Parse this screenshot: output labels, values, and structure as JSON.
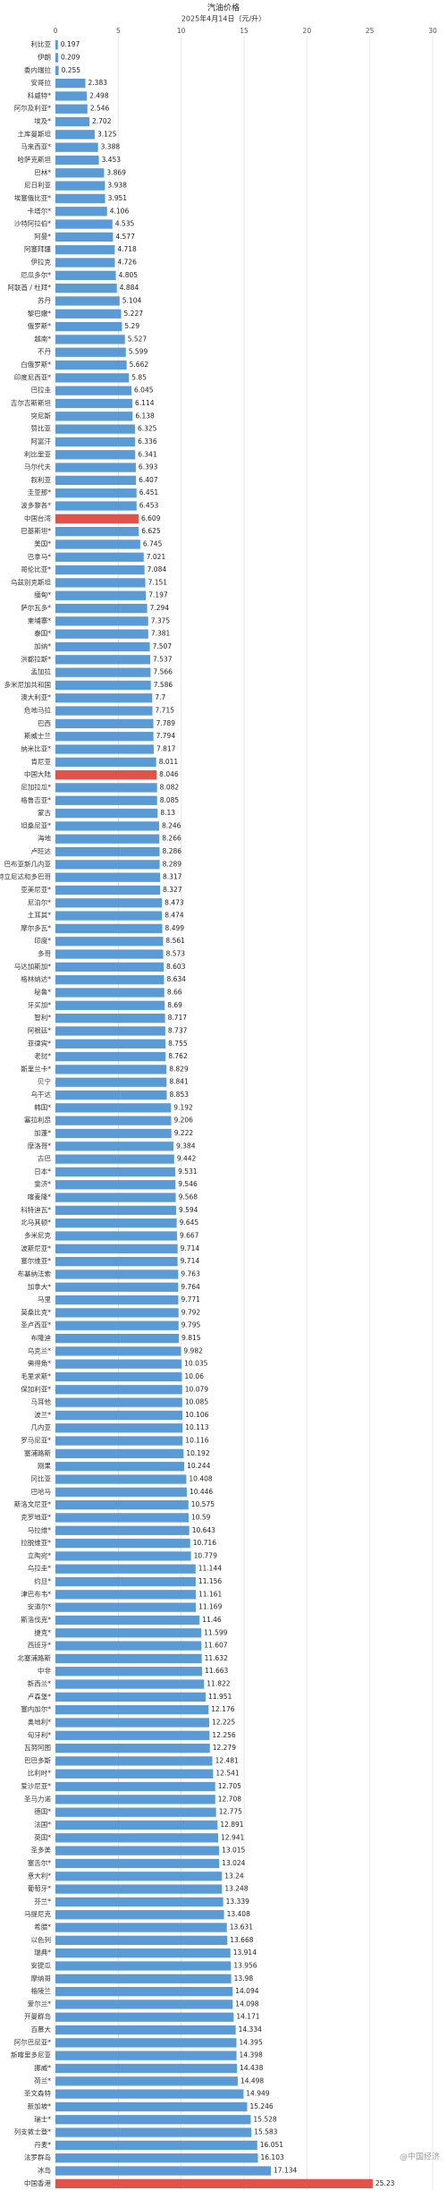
{
  "chart_data": {
    "type": "barh",
    "title": "汽油价格",
    "subtitle": "2025年4月14日（元/升）",
    "watermark": "@中国经济",
    "xlim": [
      0,
      30
    ],
    "xticks": [
      0,
      5,
      10,
      15,
      20,
      25,
      30
    ],
    "grid": true,
    "categories": [
      "利比亚",
      "伊朗",
      "委内瑞拉",
      "安哥拉",
      "科威特*",
      "阿尔及利亚*",
      "埃及*",
      "土库曼斯坦",
      "马来西亚*",
      "哈萨克斯坦",
      "巴林*",
      "尼日利亚",
      "埃塞俄比亚*",
      "卡塔尔*",
      "沙特阿拉伯*",
      "阿曼*",
      "阿塞拜疆",
      "伊拉克",
      "厄瓜多尔*",
      "阿联酋 / 杜拜*",
      "苏丹",
      "黎巴嫩*",
      "俄罗斯*",
      "越南*",
      "不丹",
      "白俄罗斯*",
      "印度尼西亚*",
      "巴拉圭",
      "吉尔吉斯斯坦",
      "突尼斯",
      "赞比亚",
      "阿富汗",
      "利比里亚",
      "马尔代夫",
      "叙利亚",
      "圭亚那*",
      "波多黎各*",
      "中国台湾",
      "巴基斯坦*",
      "美国*",
      "巴拿马*",
      "哥伦比亚*",
      "乌兹别克斯坦",
      "缅甸*",
      "萨尔瓦多*",
      "柬埔寨*",
      "泰国*",
      "加纳*",
      "洪都拉斯*",
      "孟加拉",
      "多米尼加共和国",
      "澳大利亚*",
      "危地马拉",
      "巴西",
      "斯威士兰",
      "纳米比亚*",
      "肯尼亚",
      "中国大陆",
      "尼加拉瓜*",
      "格鲁吉亚*",
      "蒙古",
      "坦桑尼亚*",
      "海地",
      "卢旺达",
      "巴布亚新几内亚",
      "特立尼达和多巴哥",
      "亚美尼亚*",
      "尼泊尔*",
      "土耳其*",
      "摩尔多瓦*",
      "印度*",
      "多哥",
      "马达加斯加*",
      "格林纳达*",
      "秘鲁*",
      "牙买加*",
      "智利*",
      "阿根廷*",
      "菲律宾*",
      "老挝*",
      "斯里兰卡*",
      "贝宁",
      "乌干达",
      "韩国*",
      "塞拉利昂",
      "加蓬*",
      "摩洛哥*",
      "古巴",
      "日本*",
      "斐济*",
      "喀麦隆*",
      "科特迪瓦*",
      "北马其顿*",
      "多米尼克",
      "波斯尼亚*",
      "塞尔维亚*",
      "布基纳法索",
      "加拿大*",
      "马里",
      "莫桑比克*",
      "圣卢西亚*",
      "布隆迪",
      "乌克兰*",
      "佛得角*",
      "毛里求斯*",
      "保加利亚*",
      "马耳他",
      "波兰*",
      "几内亚",
      "罗马尼亚*",
      "塞浦路斯",
      "刚果",
      "冈比亚",
      "巴哈马",
      "斯洛文尼亚*",
      "克罗地亚*",
      "马拉维*",
      "拉脱维亚*",
      "立陶宛*",
      "乌拉圭*",
      "约旦*",
      "津巴布韦*",
      "安道尔*",
      "斯洛伐克*",
      "捷克*",
      "西班牙*",
      "北塞浦路斯",
      "中非",
      "新西兰*",
      "卢森堡*",
      "塞内加尔*",
      "奥地利*",
      "匈牙利*",
      "瓦努阿图",
      "巴巴多斯",
      "比利时*",
      "爱沙尼亚*",
      "圣马力诺",
      "德国*",
      "法国*",
      "英国*",
      "圣多美",
      "塞舌尔*",
      "意大利*",
      "葡萄牙*",
      "芬兰*",
      "马提尼克",
      "希腊*",
      "以色列",
      "瑞典*",
      "安提瓜",
      "摩纳哥",
      "格陵兰",
      "爱尔兰*",
      "开曼群岛",
      "百慕大",
      "阿尔巴尼亚*",
      "新喀里多尼亚",
      "挪威*",
      "荷兰*",
      "圣文森特",
      "新加坡*",
      "瑞士*",
      "列支敦士登*",
      "丹麦*",
      "法罗群岛",
      "冰岛",
      "中国香港"
    ],
    "values": [
      0.197,
      0.209,
      0.255,
      2.383,
      2.498,
      2.546,
      2.702,
      3.125,
      3.388,
      3.453,
      3.869,
      3.938,
      3.951,
      4.106,
      4.535,
      4.577,
      4.718,
      4.726,
      4.805,
      4.884,
      5.104,
      5.227,
      5.29,
      5.527,
      5.599,
      5.662,
      5.85,
      6.045,
      6.114,
      6.138,
      6.325,
      6.336,
      6.341,
      6.393,
      6.407,
      6.451,
      6.453,
      6.609,
      6.625,
      6.745,
      7.021,
      7.084,
      7.151,
      7.197,
      7.294,
      7.375,
      7.381,
      7.507,
      7.537,
      7.566,
      7.586,
      7.7,
      7.715,
      7.789,
      7.794,
      7.817,
      8.011,
      8.046,
      8.082,
      8.085,
      8.13,
      8.246,
      8.266,
      8.286,
      8.289,
      8.317,
      8.327,
      8.473,
      8.474,
      8.499,
      8.561,
      8.573,
      8.603,
      8.634,
      8.66,
      8.69,
      8.717,
      8.737,
      8.755,
      8.762,
      8.829,
      8.841,
      8.853,
      9.192,
      9.206,
      9.222,
      9.384,
      9.442,
      9.531,
      9.546,
      9.568,
      9.594,
      9.645,
      9.667,
      9.714,
      9.714,
      9.763,
      9.764,
      9.771,
      9.792,
      9.795,
      9.815,
      9.982,
      10.035,
      10.06,
      10.079,
      10.085,
      10.106,
      10.113,
      10.116,
      10.192,
      10.244,
      10.408,
      10.446,
      10.575,
      10.59,
      10.643,
      10.716,
      10.779,
      11.144,
      11.156,
      11.161,
      11.169,
      11.46,
      11.599,
      11.607,
      11.632,
      11.663,
      11.822,
      11.951,
      12.176,
      12.225,
      12.256,
      12.279,
      12.481,
      12.541,
      12.705,
      12.708,
      12.775,
      12.891,
      12.941,
      13.015,
      13.024,
      13.24,
      13.248,
      13.339,
      13.408,
      13.631,
      13.668,
      13.914,
      13.956,
      13.98,
      14.094,
      14.098,
      14.171,
      14.334,
      14.395,
      14.398,
      14.438,
      14.498,
      14.949,
      15.246,
      15.528,
      15.583,
      16.051,
      16.103,
      17.134,
      25.23
    ],
    "colors": [
      "#5b9bd5",
      "#5b9bd5",
      "#5b9bd5",
      "#5b9bd5",
      "#5b9bd5",
      "#5b9bd5",
      "#5b9bd5",
      "#5b9bd5",
      "#5b9bd5",
      "#5b9bd5",
      "#5b9bd5",
      "#5b9bd5",
      "#5b9bd5",
      "#5b9bd5",
      "#5b9bd5",
      "#5b9bd5",
      "#5b9bd5",
      "#5b9bd5",
      "#5b9bd5",
      "#5b9bd5",
      "#5b9bd5",
      "#5b9bd5",
      "#5b9bd5",
      "#5b9bd5",
      "#5b9bd5",
      "#5b9bd5",
      "#5b9bd5",
      "#5b9bd5",
      "#5b9bd5",
      "#5b9bd5",
      "#5b9bd5",
      "#5b9bd5",
      "#5b9bd5",
      "#5b9bd5",
      "#5b9bd5",
      "#5b9bd5",
      "#5b9bd5",
      "#e0524a",
      "#5b9bd5",
      "#5b9bd5",
      "#5b9bd5",
      "#5b9bd5",
      "#5b9bd5",
      "#5b9bd5",
      "#5b9bd5",
      "#5b9bd5",
      "#5b9bd5",
      "#5b9bd5",
      "#5b9bd5",
      "#5b9bd5",
      "#5b9bd5",
      "#5b9bd5",
      "#5b9bd5",
      "#5b9bd5",
      "#5b9bd5",
      "#5b9bd5",
      "#5b9bd5",
      "#e0524a",
      "#5b9bd5",
      "#5b9bd5",
      "#5b9bd5",
      "#5b9bd5",
      "#5b9bd5",
      "#5b9bd5",
      "#5b9bd5",
      "#5b9bd5",
      "#5b9bd5",
      "#5b9bd5",
      "#5b9bd5",
      "#5b9bd5",
      "#5b9bd5",
      "#5b9bd5",
      "#5b9bd5",
      "#5b9bd5",
      "#5b9bd5",
      "#5b9bd5",
      "#5b9bd5",
      "#5b9bd5",
      "#5b9bd5",
      "#5b9bd5",
      "#5b9bd5",
      "#5b9bd5",
      "#5b9bd5",
      "#5b9bd5",
      "#5b9bd5",
      "#5b9bd5",
      "#5b9bd5",
      "#5b9bd5",
      "#5b9bd5",
      "#5b9bd5",
      "#5b9bd5",
      "#5b9bd5",
      "#5b9bd5",
      "#5b9bd5",
      "#5b9bd5",
      "#5b9bd5",
      "#5b9bd5",
      "#5b9bd5",
      "#5b9bd5",
      "#5b9bd5",
      "#5b9bd5",
      "#5b9bd5",
      "#5b9bd5",
      "#5b9bd5",
      "#5b9bd5",
      "#5b9bd5",
      "#5b9bd5",
      "#5b9bd5",
      "#5b9bd5",
      "#5b9bd5",
      "#5b9bd5",
      "#5b9bd5",
      "#5b9bd5",
      "#5b9bd5",
      "#5b9bd5",
      "#5b9bd5",
      "#5b9bd5",
      "#5b9bd5",
      "#5b9bd5",
      "#5b9bd5",
      "#5b9bd5",
      "#5b9bd5",
      "#5b9bd5",
      "#5b9bd5",
      "#5b9bd5",
      "#5b9bd5",
      "#5b9bd5",
      "#5b9bd5",
      "#5b9bd5",
      "#5b9bd5",
      "#5b9bd5",
      "#5b9bd5",
      "#5b9bd5",
      "#5b9bd5",
      "#5b9bd5",
      "#5b9bd5",
      "#5b9bd5",
      "#5b9bd5",
      "#5b9bd5",
      "#5b9bd5",
      "#5b9bd5",
      "#5b9bd5",
      "#5b9bd5",
      "#5b9bd5",
      "#5b9bd5",
      "#5b9bd5",
      "#5b9bd5",
      "#5b9bd5",
      "#5b9bd5",
      "#5b9bd5",
      "#5b9bd5",
      "#5b9bd5",
      "#5b9bd5",
      "#5b9bd5",
      "#5b9bd5",
      "#5b9bd5",
      "#5b9bd5",
      "#5b9bd5",
      "#5b9bd5",
      "#5b9bd5",
      "#5b9bd5",
      "#5b9bd5",
      "#5b9bd5",
      "#5b9bd5",
      "#5b9bd5",
      "#5b9bd5",
      "#5b9bd5",
      "#e0524a"
    ]
  }
}
